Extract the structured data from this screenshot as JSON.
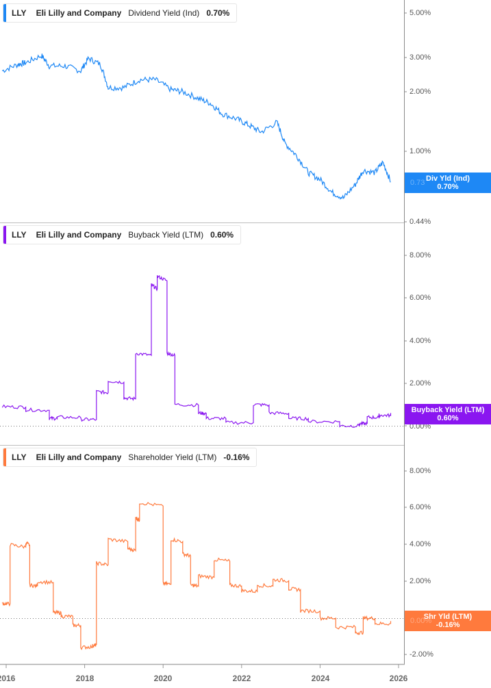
{
  "panels": [
    {
      "ticker": "LLY",
      "company": "Eli Lilly and Company",
      "metric": "Dividend Yield (Ind)",
      "value": "0.70%",
      "color": "#1e88f5",
      "badge": {
        "label": "Div Yld (Ind)",
        "value": "0.70%",
        "ghost_tick": "0.73"
      },
      "y_ticks": [
        "5.00%",
        "3.00%",
        "2.00%",
        "1.00%",
        "0.44%"
      ]
    },
    {
      "ticker": "LLY",
      "company": "Eli Lilly and Company",
      "metric": "Buyback Yield (LTM)",
      "value": "0.60%",
      "color": "#8a16f0",
      "badge": {
        "label": "Buyback Yield (LTM)",
        "value": "0.60%"
      },
      "y_ticks": [
        "8.00%",
        "6.00%",
        "4.00%",
        "2.00%",
        "0.00%"
      ]
    },
    {
      "ticker": "LLY",
      "company": "Eli Lilly and Company",
      "metric": "Shareholder Yield (LTM)",
      "value": "-0.16%",
      "color": "#ff7a3d",
      "badge": {
        "label": "Shr Yld (LTM)",
        "value": "-0.16%",
        "ghost_tick": "0.00%"
      },
      "y_ticks": [
        "8.00%",
        "6.00%",
        "4.00%",
        "2.00%",
        "0.00%",
        "-2.00%"
      ]
    }
  ],
  "x_axis": {
    "ticks": [
      "2016",
      "2018",
      "2020",
      "2022",
      "2024",
      "2026"
    ]
  },
  "chart_data": [
    {
      "type": "line",
      "title": "LLY Eli Lilly and Company Dividend Yield (Ind)",
      "ylabel": "Dividend Yield (%)",
      "yscale": "log",
      "ylim": [
        0.44,
        5.5
      ],
      "y_ticks": [
        5.0,
        3.0,
        2.0,
        1.0,
        0.44
      ],
      "x": [
        2015.9,
        2016.3,
        2016.5,
        2016.9,
        2017.1,
        2017.5,
        2017.9,
        2018.1,
        2018.4,
        2018.6,
        2019.0,
        2019.4,
        2019.8,
        2020.2,
        2020.5,
        2020.9,
        2021.2,
        2021.5,
        2021.9,
        2022.2,
        2022.5,
        2022.9,
        2023.1,
        2023.4,
        2023.7,
        2024.0,
        2024.3,
        2024.6,
        2024.9,
        2025.1,
        2025.4,
        2025.6,
        2025.8
      ],
      "values": [
        2.55,
        2.75,
        2.8,
        3.05,
        2.7,
        2.7,
        2.55,
        2.95,
        2.75,
        2.1,
        2.1,
        2.3,
        2.3,
        2.05,
        2.0,
        1.85,
        1.75,
        1.55,
        1.45,
        1.35,
        1.25,
        1.4,
        1.1,
        0.95,
        0.78,
        0.72,
        0.62,
        0.58,
        0.68,
        0.8,
        0.78,
        0.88,
        0.7
      ],
      "last_value": 0.7,
      "color": "#1e88f5"
    },
    {
      "type": "line",
      "title": "LLY Eli Lilly and Company Buyback Yield (LTM)",
      "ylabel": "Buyback Yield (%)",
      "ylim": [
        -0.2,
        9.0
      ],
      "y_ticks": [
        8.0,
        6.0,
        4.0,
        2.0,
        0.0
      ],
      "x": [
        2015.9,
        2016.5,
        2017.1,
        2017.3,
        2017.9,
        2018.3,
        2018.6,
        2019.0,
        2019.3,
        2019.7,
        2019.85,
        2020.1,
        2020.3,
        2020.9,
        2021.1,
        2021.6,
        2022.3,
        2022.7,
        2023.2,
        2023.7,
        2024.5,
        2025.0,
        2025.2,
        2025.5,
        2025.8
      ],
      "values": [
        0.9,
        0.75,
        0.35,
        0.4,
        0.3,
        1.6,
        2.1,
        1.3,
        3.4,
        6.6,
        7.0,
        3.4,
        1.0,
        0.6,
        0.35,
        0.15,
        1.0,
        0.6,
        0.35,
        0.2,
        0.0,
        0.1,
        0.4,
        0.5,
        0.6
      ],
      "last_value": 0.6,
      "color": "#8a16f0"
    },
    {
      "type": "line",
      "title": "LLY Eli Lilly and Company Shareholder Yield (LTM)",
      "ylabel": "Shareholder Yield (%)",
      "ylim": [
        -2.3,
        9.0
      ],
      "y_ticks": [
        8.0,
        6.0,
        4.0,
        2.0,
        0.0,
        -2.0
      ],
      "x": [
        2015.9,
        2016.1,
        2016.5,
        2016.6,
        2016.8,
        2017.2,
        2017.4,
        2017.7,
        2017.9,
        2018.2,
        2018.3,
        2018.6,
        2019.1,
        2019.3,
        2019.4,
        2020.0,
        2020.2,
        2020.5,
        2020.7,
        2020.9,
        2021.3,
        2021.7,
        2022.0,
        2022.4,
        2022.8,
        2023.2,
        2023.5,
        2024.0,
        2024.4,
        2024.9,
        2025.1,
        2025.4,
        2025.8
      ],
      "values": [
        0.8,
        4.0,
        4.1,
        1.8,
        2.0,
        0.3,
        0.1,
        -0.4,
        -1.6,
        -1.5,
        3.0,
        4.3,
        3.8,
        5.5,
        6.3,
        1.9,
        4.3,
        3.5,
        1.8,
        2.3,
        3.2,
        1.8,
        1.5,
        1.8,
        2.1,
        1.6,
        0.4,
        0.0,
        -0.5,
        -0.8,
        0.0,
        -0.3,
        -0.16
      ],
      "last_value": -0.16,
      "color": "#ff7a3d"
    }
  ]
}
